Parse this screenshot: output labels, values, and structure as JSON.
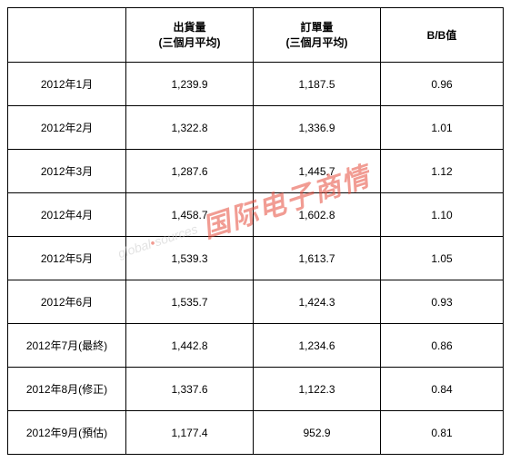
{
  "table": {
    "headers": {
      "period": "",
      "shipment_line1": "出貨量",
      "shipment_line2": "(三個月平均)",
      "order_line1": "訂單量",
      "order_line2": "(三個月平均)",
      "bb": "B/B值"
    },
    "rows": [
      {
        "period": "2012年1月",
        "shipment": "1,239.9",
        "order": "1,187.5",
        "bb": "0.96"
      },
      {
        "period": "2012年2月",
        "shipment": "1,322.8",
        "order": "1,336.9",
        "bb": "1.01"
      },
      {
        "period": "2012年3月",
        "shipment": "1,287.6",
        "order": "1,445.7",
        "bb": "1.12"
      },
      {
        "period": "2012年4月",
        "shipment": "1,458.7",
        "order": "1,602.8",
        "bb": "1.10"
      },
      {
        "period": "2012年5月",
        "shipment": "1,539.3",
        "order": "1,613.7",
        "bb": "1.05"
      },
      {
        "period": "2012年6月",
        "shipment": "1,535.7",
        "order": "1,424.3",
        "bb": "0.93"
      },
      {
        "period": "2012年7月(最終)",
        "shipment": "1,442.8",
        "order": "1,234.6",
        "bb": "0.86"
      },
      {
        "period": "2012年8月(修正)",
        "shipment": "1,337.6",
        "order": "1,122.3",
        "bb": "0.84"
      },
      {
        "period": "2012年9月(預估)",
        "shipment": "1,177.4",
        "order": "952.9",
        "bb": "0.81"
      }
    ]
  },
  "watermark": {
    "gs_prefix": "global",
    "gs_suffix": "sources",
    "cn": "国际电子商情"
  },
  "styling": {
    "border_color": "#000000",
    "text_color": "#000000",
    "background_color": "#ffffff",
    "watermark_red": "#e74c3c",
    "watermark_gray": "#cccccc",
    "font_size_cell": 12,
    "font_size_wm_en": 14,
    "font_size_wm_cn": 30
  }
}
